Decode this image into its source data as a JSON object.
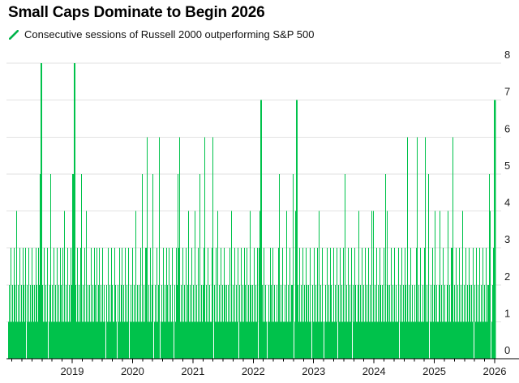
{
  "header": {
    "title": "Small Caps Dominate to Begin 2026"
  },
  "legend": {
    "label": "Consecutive sessions of Russell 2000 outperforming S&P 500",
    "marker": "green-slash-icon"
  },
  "colors": {
    "bar_green": "#00c24b",
    "legend_green": "#00b44a",
    "gridline": "#e2e2e2",
    "axis": "#000000",
    "tick_label": "#1d1d1d",
    "background": "#ffffff"
  },
  "chart_data": {
    "type": "bar",
    "title": "Small Caps Dominate to Begin 2026",
    "series_name": "Consecutive sessions of Russell 2000 outperforming S&P 500",
    "xlabel": "",
    "ylabel": "",
    "ylim": [
      0,
      8
    ],
    "y_ticks": [
      0,
      1,
      2,
      3,
      4,
      5,
      6,
      7,
      8
    ],
    "y_tick_side": "right",
    "x_tick_labels": [
      "2019",
      "2020",
      "2021",
      "2022",
      "2023",
      "2024",
      "2025",
      "2026"
    ],
    "x_range": "2018 through start of 2026, daily sessions",
    "grid": "horizontal",
    "legend_position": "top-left",
    "encoding": "one digit per bar, left-to-right in time; digit = consecutive sessions of Russell 2000 outperforming S&P 500 (0-8)",
    "values_encoded": "121312132141213121321302131213212132132581213121301251213121312132131412131213255812131213512131412121312132131231213121021312132113210213123121312130121312141212131512133612131250121312601213121321312131021325361213121312412131214121315121236121312113602131412131213212121314121312130213121321312142121312130347121312101213213121121351213112141213122501471213121312132121310213121314121310121312132113121302131213151213121302132112412131213121312141412131213212131514212131213121130213121321612131211213612131121361215012131241211241213121124121336121312131214121312132121302131213121312131225401237",
    "notable_peaks": [
      {
        "period": "mid-2018",
        "value": 8
      },
      {
        "period": "start of 2019",
        "value": 8
      },
      {
        "period": "2020 cluster",
        "value": 6
      },
      {
        "period": "early 2021",
        "value": 6
      },
      {
        "period": "early 2022",
        "value": 7
      },
      {
        "period": "Q3 2022",
        "value": 7
      },
      {
        "period": "late 2024",
        "value": 6
      },
      {
        "period": "mid 2025",
        "value": 6
      },
      {
        "period": "start of 2026 (latest)",
        "value": 7
      }
    ]
  }
}
